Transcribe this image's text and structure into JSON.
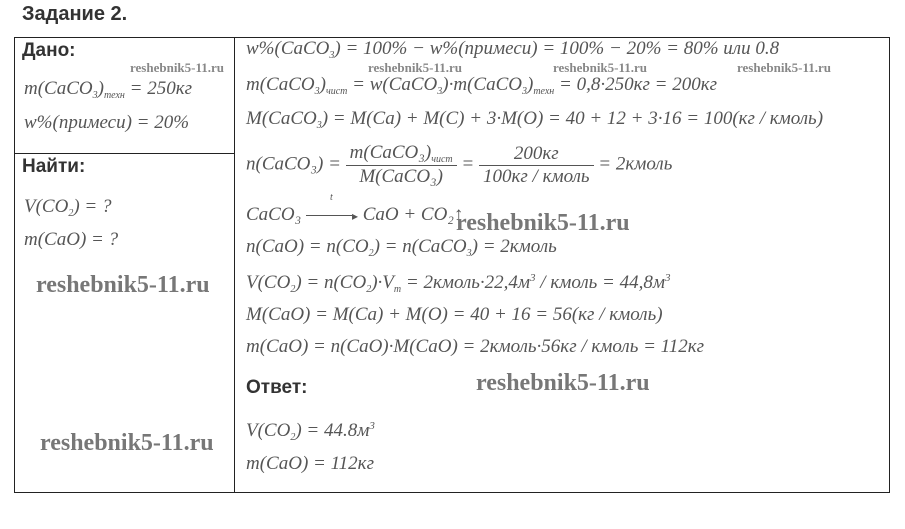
{
  "title": "Задание 2.",
  "given": {
    "heading": "Дано:",
    "lines": [
      {
        "parts": [
          "m(CaCO",
          {
            "sub": "3"
          },
          ")",
          {
            "sub": "техн"
          },
          " = 250кг"
        ]
      },
      {
        "parts": [
          "w%(примеси) = 20%"
        ]
      }
    ]
  },
  "find": {
    "heading": "Найти:",
    "lines": [
      {
        "parts": [
          "V(CO",
          {
            "sub": "2"
          },
          ") = ?"
        ]
      },
      {
        "parts": [
          "m(CaO) = ?"
        ]
      }
    ]
  },
  "solution": {
    "lines": [
      {
        "parts": [
          "w%(CaCO",
          {
            "sub": "3"
          },
          ") = 100% − w%(примеси) = 100% − 20% = 80%  или  0.8"
        ]
      },
      {
        "parts": [
          "m(CaCO",
          {
            "sub": "3"
          },
          ")",
          {
            "sub": "чист"
          },
          " = w(CaCO",
          {
            "sub": "3"
          },
          ")·m(CaCO",
          {
            "sub": "3"
          },
          ")",
          {
            "sub": "техн"
          },
          " = 0,8·250кг = 200кг"
        ]
      },
      {
        "parts": [
          "M(CaCO",
          {
            "sub": "3"
          },
          ") = M(Ca) + M(C) + 3·M(O) = 40 + 12 + 3·16 = 100(кг / кмоль)"
        ]
      }
    ],
    "fraction": {
      "lhs": "n(CaCO₃) =",
      "num1": "m(CaCO₃)",
      "num1_sub": "чист",
      "den1": "M(CaCO₃)",
      "eq": "=",
      "num2": "200кг",
      "den2": "100кг / кмоль",
      "rhs": "= 2кмоль"
    },
    "reaction": {
      "left": "CaCO₃",
      "cond": "t",
      "right": "CaO + CO₂↑"
    },
    "lines2": [
      {
        "parts": [
          "n(CaO) = n(CO",
          {
            "sub": "2"
          },
          ") = n(CaCO",
          {
            "sub": "3"
          },
          ") = 2кмоль"
        ]
      },
      {
        "parts": [
          "V(CO",
          {
            "sub": "2"
          },
          ") = n(CO",
          {
            "sub": "2"
          },
          ")·V",
          {
            "sub": "m"
          },
          " = 2кмоль·22,4м",
          {
            "sup": "3"
          },
          " / кмоль = 44,8м",
          {
            "sup": "3"
          }
        ]
      },
      {
        "parts": [
          "M(CaO) = M(Ca) + M(O) = 40 + 16 = 56(кг / кмоль)"
        ]
      },
      {
        "parts": [
          "m(CaO) = n(CaO)·M(CaO) = 2кмоль·56кг / кмоль = 112кг"
        ]
      }
    ],
    "answer_heading": "Ответ:",
    "answers": [
      {
        "parts": [
          "V(CO",
          {
            "sub": "2"
          },
          ") = 44.8м",
          {
            "sup": "3"
          }
        ]
      },
      {
        "parts": [
          "m(CaO) = 112кг"
        ]
      }
    ]
  },
  "watermarks": [
    "reshebnik5-11.ru",
    "reshebnik5-11.ru",
    "reshebnik5-11.ru",
    "reshebnik5-11.ru",
    "reshebnik5-11.ru",
    "reshebnik5-11.ru",
    "reshebnik5-11.ru",
    "reshebnik5-11.ru"
  ]
}
